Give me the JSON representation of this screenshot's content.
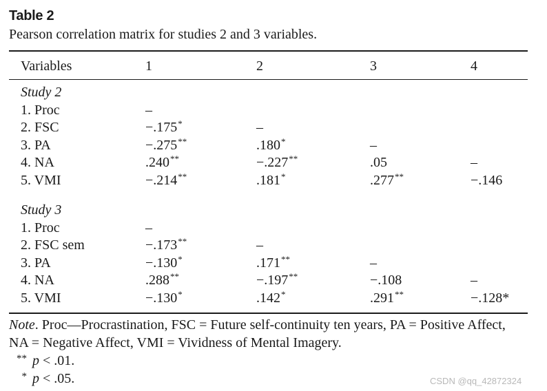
{
  "table": {
    "title": "Table 2",
    "caption": "Pearson correlation matrix for studies 2 and 3 variables.",
    "columns": [
      "Variables",
      "1",
      "2",
      "3",
      "4"
    ],
    "sections": [
      {
        "label": "Study 2",
        "rows": [
          {
            "variable": "1. Proc",
            "cells": [
              {
                "v": "–",
                "s": ""
              },
              {
                "v": "",
                "s": ""
              },
              {
                "v": "",
                "s": ""
              },
              {
                "v": "",
                "s": ""
              }
            ]
          },
          {
            "variable": "2. FSC",
            "cells": [
              {
                "v": "−.175",
                "s": "*"
              },
              {
                "v": "–",
                "s": ""
              },
              {
                "v": "",
                "s": ""
              },
              {
                "v": "",
                "s": ""
              }
            ]
          },
          {
            "variable": "3. PA",
            "cells": [
              {
                "v": "−.275",
                "s": "**"
              },
              {
                "v": ".180",
                "s": "*"
              },
              {
                "v": "–",
                "s": ""
              },
              {
                "v": "",
                "s": ""
              }
            ]
          },
          {
            "variable": "4. NA",
            "cells": [
              {
                "v": ".240",
                "s": "**"
              },
              {
                "v": "−.227",
                "s": "**"
              },
              {
                "v": ".05",
                "s": ""
              },
              {
                "v": "–",
                "s": ""
              }
            ]
          },
          {
            "variable": "5. VMI",
            "cells": [
              {
                "v": "−.214",
                "s": "**"
              },
              {
                "v": ".181",
                "s": "*"
              },
              {
                "v": ".277",
                "s": "**"
              },
              {
                "v": "−.146",
                "s": ""
              }
            ]
          }
        ]
      },
      {
        "label": "Study 3",
        "rows": [
          {
            "variable": "1. Proc",
            "cells": [
              {
                "v": "–",
                "s": ""
              },
              {
                "v": "",
                "s": ""
              },
              {
                "v": "",
                "s": ""
              },
              {
                "v": "",
                "s": ""
              }
            ]
          },
          {
            "variable": "2. FSC sem",
            "cells": [
              {
                "v": "−.173",
                "s": "**"
              },
              {
                "v": "–",
                "s": ""
              },
              {
                "v": "",
                "s": ""
              },
              {
                "v": "",
                "s": ""
              }
            ]
          },
          {
            "variable": "3. PA",
            "cells": [
              {
                "v": "−.130",
                "s": "*"
              },
              {
                "v": ".171",
                "s": "**"
              },
              {
                "v": "–",
                "s": ""
              },
              {
                "v": "",
                "s": ""
              }
            ]
          },
          {
            "variable": "4. NA",
            "cells": [
              {
                "v": ".288",
                "s": "**"
              },
              {
                "v": "−.197",
                "s": "**"
              },
              {
                "v": "−.108",
                "s": ""
              },
              {
                "v": "–",
                "s": ""
              }
            ]
          },
          {
            "variable": "5. VMI",
            "cells": [
              {
                "v": "−.130",
                "s": "*"
              },
              {
                "v": ".142",
                "s": "*"
              },
              {
                "v": ".291",
                "s": "**"
              },
              {
                "v": "−.128*",
                "s": ""
              }
            ]
          }
        ]
      }
    ]
  },
  "note": {
    "label": "Note",
    "line1": ". Proc—Procrastination, FSC = Future self-continuity ten years, PA = Positive Affect,",
    "line2": "NA = Negative Affect, VMI = Vividness of Mental Imagery."
  },
  "significance": [
    {
      "stars": "**",
      "p": "p",
      "text": " < .01."
    },
    {
      "stars": "*",
      "p": "p",
      "text": " < .05."
    }
  ],
  "watermark": "CSDN @qq_42872324"
}
